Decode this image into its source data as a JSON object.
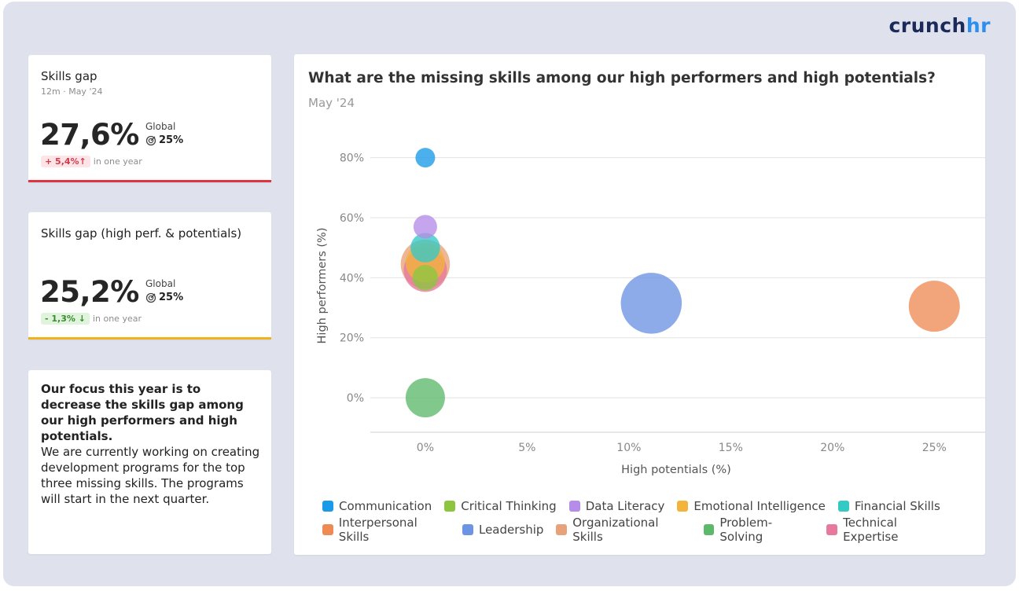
{
  "brand": {
    "part1": "crunch",
    "part2": "hr"
  },
  "kpis": [
    {
      "title": "Skills gap",
      "subtitle": "12m · May '24",
      "value": "27,6%",
      "global_label": "Global",
      "global_value": "25%",
      "delta": "+ 5,4%↑",
      "delta_text": "in one year",
      "status_color": "#e0323f"
    },
    {
      "title": "Skills gap (high perf. & potentials)",
      "subtitle": "",
      "value": "25,2%",
      "global_label": "Global",
      "global_value": "25%",
      "delta": "- 1,3% ↓",
      "delta_text": "in one year",
      "status_color": "#f0b21b"
    }
  ],
  "note": {
    "headline": "Our focus this year is to decrease the skills gap among our high performers and high potentials.",
    "body": "We are currently working on creating development programs for the top three missing skills. The programs will start in the next quarter."
  },
  "chart": {
    "title": "What are the missing skills among our high performers and high potentials?",
    "subtitle": "May '24"
  },
  "chart_data": {
    "type": "scatter",
    "title": "What are the missing skills among our high performers and high potentials?",
    "subtitle": "May '24",
    "xlabel": "High potentials (%)",
    "ylabel": "High performers (%)",
    "xlim": [
      -2.7,
      27.5
    ],
    "ylim": [
      -11.5,
      82
    ],
    "x_ticks": [
      "0%",
      "5%",
      "10%",
      "15%",
      "20%",
      "25%"
    ],
    "y_ticks": [
      "0%",
      "20%",
      "40%",
      "60%",
      "80%"
    ],
    "grid": "horizontal",
    "legend_position": "bottom",
    "series": [
      {
        "name": "Communication",
        "color": "#1a9ae8",
        "x": 0,
        "y": 80,
        "size": 1
      },
      {
        "name": "Critical Thinking",
        "color": "#8cc63f",
        "x": 0,
        "y": 40,
        "size": 1.3
      },
      {
        "name": "Data Literacy",
        "color": "#b58ce8",
        "x": 0,
        "y": 57,
        "size": 1.2
      },
      {
        "name": "Emotional Intelligence",
        "color": "#f3b43c",
        "x": 0,
        "y": 45,
        "size": 2
      },
      {
        "name": "Financial Skills",
        "color": "#35c9c6",
        "x": 0,
        "y": 50,
        "size": 1.5
      },
      {
        "name": "Interpersonal Skills",
        "color": "#ee8b55",
        "x": 25,
        "y": 30.5,
        "size": 2.6
      },
      {
        "name": "Leadership",
        "color": "#6d94e3",
        "x": 11.1,
        "y": 31.5,
        "size": 3.1
      },
      {
        "name": "Organizational Skills",
        "color": "#e8a27a",
        "x": 0,
        "y": 44.5,
        "size": 2.5
      },
      {
        "name": "Problem-Solving",
        "color": "#5cb96a",
        "x": 0,
        "y": 0,
        "size": 2
      },
      {
        "name": "Technical Expertise",
        "color": "#e7799d",
        "x": 0,
        "y": 42.5,
        "size": 2.2
      }
    ]
  }
}
